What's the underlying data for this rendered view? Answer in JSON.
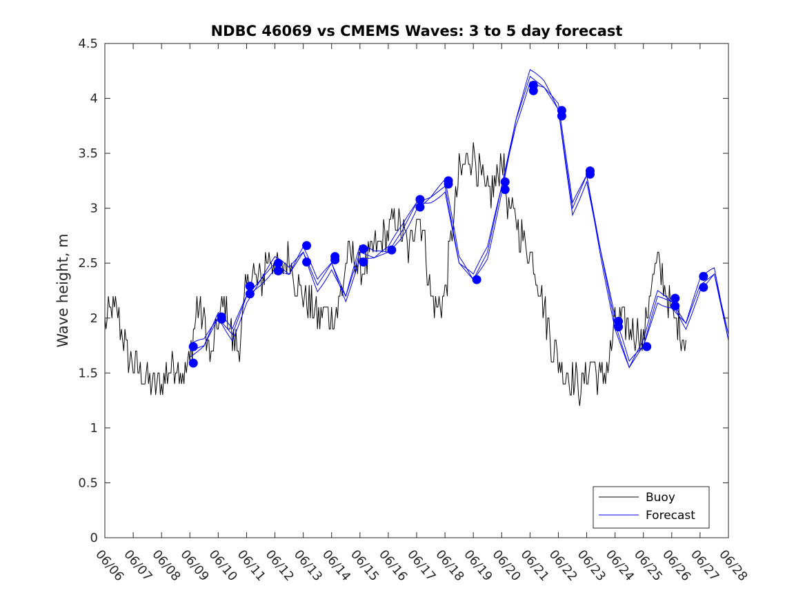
{
  "chart_data": {
    "type": "line",
    "title": "NDBC 46069 vs CMEMS Waves: 3 to 5 day forecast",
    "xlabel": "",
    "ylabel": "Wave height, m",
    "xlim": [
      "06/06",
      "06/28"
    ],
    "ylim": [
      0,
      4.5
    ],
    "x_tick_labels": [
      "06/06",
      "06/07",
      "06/08",
      "06/09",
      "06/10",
      "06/11",
      "06/12",
      "06/13",
      "06/14",
      "06/15",
      "06/16",
      "06/17",
      "06/18",
      "06/19",
      "06/20",
      "06/21",
      "06/22",
      "06/23",
      "06/24",
      "06/25",
      "06/26",
      "06/27",
      "06/28"
    ],
    "y_tick_labels": [
      "0",
      "0.5",
      "1",
      "1.5",
      "2",
      "2.5",
      "3",
      "3.5",
      "4",
      "4.5"
    ],
    "grid": false,
    "legend_position": "bottom-right",
    "colors": {
      "buoy": "#000000",
      "forecast": "#0000ff",
      "markers": "#0000ff"
    },
    "series": [
      {
        "name": "Buoy",
        "x_day_offset": [
          0,
          0.25,
          0.5,
          0.75,
          1,
          1.25,
          1.5,
          1.75,
          2,
          2.25,
          2.5,
          2.75,
          3,
          3.25,
          3.5,
          3.75,
          4,
          4.25,
          4.5,
          4.75,
          5,
          5.25,
          5.5,
          5.75,
          6,
          6.25,
          6.5,
          6.75,
          7,
          7.25,
          7.5,
          7.75,
          8,
          8.25,
          8.5,
          8.75,
          9,
          9.25,
          9.5,
          9.75,
          10,
          10.25,
          10.5,
          10.75,
          11,
          11.25,
          11.5,
          11.75,
          12,
          12.25,
          12.5,
          12.75,
          13,
          13.25,
          13.5,
          13.75,
          14,
          14.25,
          14.5,
          14.75,
          15,
          15.25,
          15.5,
          15.75,
          16,
          16.25,
          16.5,
          16.75,
          17,
          17.25,
          17.5,
          17.75,
          18,
          18.25,
          18.5,
          18.75,
          19,
          19.25,
          19.5,
          19.75,
          20,
          20.25,
          20.5,
          20.75,
          21,
          21.25,
          21.5,
          21.75,
          22
        ],
        "values": [
          1.9,
          2.1,
          2.0,
          1.7,
          1.6,
          1.5,
          1.45,
          1.4,
          1.4,
          1.55,
          1.6,
          1.5,
          1.6,
          2.1,
          2.0,
          1.6,
          2.0,
          2.1,
          1.8,
          1.75,
          2.3,
          2.4,
          2.3,
          2.6,
          2.5,
          2.4,
          2.6,
          2.3,
          2.2,
          2.1,
          2.0,
          2.05,
          2.0,
          2.1,
          2.5,
          2.6,
          2.4,
          2.5,
          2.6,
          2.7,
          2.75,
          2.9,
          2.8,
          2.6,
          3.0,
          2.8,
          2.2,
          2.1,
          2.2,
          2.8,
          3.3,
          3.4,
          3.5,
          3.3,
          3.1,
          3.2,
          3.5,
          3.0,
          2.9,
          2.7,
          2.6,
          2.4,
          2.1,
          1.8,
          1.6,
          1.5,
          1.45,
          1.35,
          1.5,
          1.6,
          1.4,
          1.6,
          1.9,
          2.0,
          1.9,
          1.9,
          1.8,
          2.3,
          2.5,
          2.3,
          2.0,
          1.9,
          1.8
        ]
      },
      {
        "name": "Forecast",
        "x_day_offset": [
          3,
          3.5,
          4,
          4.5,
          5,
          5.5,
          6,
          6.5,
          7,
          7.5,
          8,
          8.5,
          9,
          9.5,
          10,
          10.5,
          11,
          11.5,
          12,
          12.5,
          13,
          13.5,
          14,
          14.5,
          15,
          15.5,
          16,
          16.5,
          17,
          17.5,
          18,
          18.5,
          19,
          19.5,
          20,
          20.5,
          21,
          21.5,
          22
        ],
        "values": [
          1.7,
          1.75,
          2.0,
          1.85,
          2.2,
          2.35,
          2.5,
          2.4,
          2.6,
          2.3,
          2.5,
          2.2,
          2.6,
          2.55,
          2.6,
          2.8,
          3.05,
          3.1,
          3.2,
          2.5,
          2.35,
          2.6,
          3.2,
          3.8,
          4.2,
          4.1,
          3.9,
          3.0,
          3.3,
          2.6,
          1.95,
          1.55,
          1.75,
          2.2,
          2.15,
          1.95,
          2.3,
          2.4,
          1.8
        ]
      }
    ],
    "forecast_markers": {
      "x_day_offset": [
        3,
        3,
        4,
        4,
        5,
        5,
        6,
        6,
        7,
        7,
        8,
        8,
        9,
        9,
        10,
        11,
        11,
        12,
        12,
        13,
        14,
        14,
        15,
        15,
        16,
        16,
        17,
        17,
        18,
        18,
        19,
        20,
        20,
        21,
        21
      ],
      "values": [
        1.74,
        1.59,
        2.01,
        1.99,
        2.29,
        2.22,
        2.5,
        2.43,
        2.66,
        2.51,
        2.56,
        2.53,
        2.63,
        2.51,
        2.62,
        3.08,
        3.01,
        3.25,
        3.22,
        2.35,
        3.24,
        3.17,
        4.12,
        4.07,
        3.89,
        3.84,
        3.34,
        3.31,
        1.97,
        1.92,
        1.74,
        2.18,
        2.11,
        2.38,
        2.28
      ]
    }
  }
}
